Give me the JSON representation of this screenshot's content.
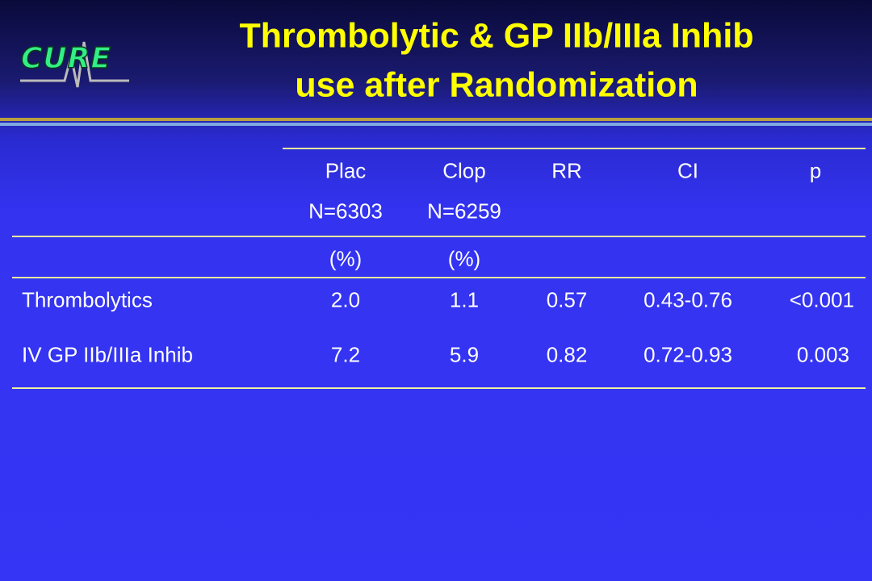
{
  "logo": "CURE",
  "title": {
    "line1": "Thrombolytic & GP IIb/IIIa Inhib",
    "line2": "use after Randomization"
  },
  "table": {
    "header": [
      "Plac",
      "Clop",
      "RR",
      "CI",
      "p"
    ],
    "subheader": [
      "N=6303",
      "N=6259"
    ],
    "units": [
      "(%)",
      "(%)"
    ],
    "rows": [
      [
        "Thrombolytics",
        "2.0",
        "1.1",
        "0.57",
        "0.43-0.76",
        "<0.001"
      ],
      [
        "IV GP IIb/IIIa Inhib",
        "7.2",
        "5.9",
        "0.82",
        "0.72-0.93",
        "0.003"
      ]
    ]
  }
}
